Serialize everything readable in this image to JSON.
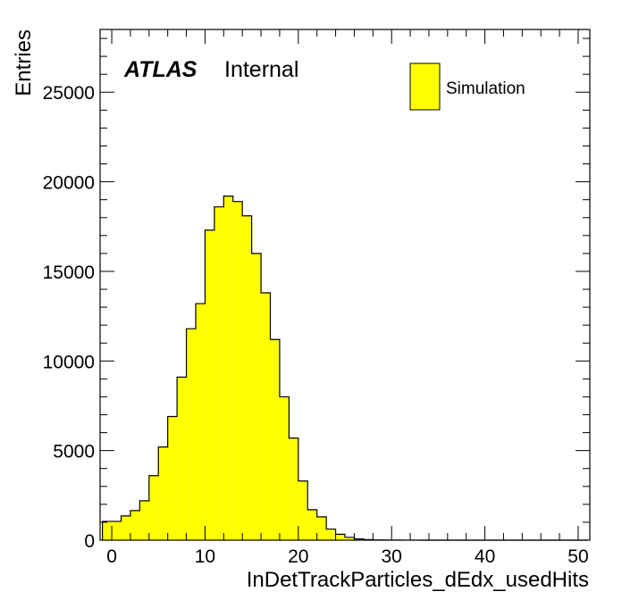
{
  "chart_data": {
    "type": "bar",
    "xlabel": "InDetTrackParticles_dEdx_usedHits",
    "ylabel": "Entries",
    "xlim": [
      -1.25,
      51.25
    ],
    "ylim": [
      0,
      28500
    ],
    "x_ticks": [
      0,
      10,
      20,
      30,
      40,
      50
    ],
    "y_ticks": [
      0,
      5000,
      10000,
      15000,
      20000,
      25000
    ],
    "bin_width": 1,
    "bin_edges_start": -1,
    "values": [
      1050,
      1050,
      1350,
      1650,
      2200,
      3600,
      5200,
      6900,
      9100,
      11800,
      13200,
      17300,
      18600,
      19200,
      18900,
      18100,
      16000,
      13800,
      11200,
      8000,
      5700,
      3300,
      1700,
      1300,
      620,
      330,
      160,
      70,
      30,
      15,
      8,
      5,
      3,
      2,
      1,
      1,
      0,
      0,
      0,
      0,
      0,
      0,
      0,
      0,
      0,
      0,
      0,
      0,
      0,
      0,
      0,
      0
    ],
    "fill_color": "#ffff00",
    "line_color": "#000000",
    "legend": {
      "label": "Simulation",
      "position": "top-right"
    },
    "annotation": {
      "bold": "ATLAS",
      "text": "Internal"
    },
    "grid": false
  }
}
